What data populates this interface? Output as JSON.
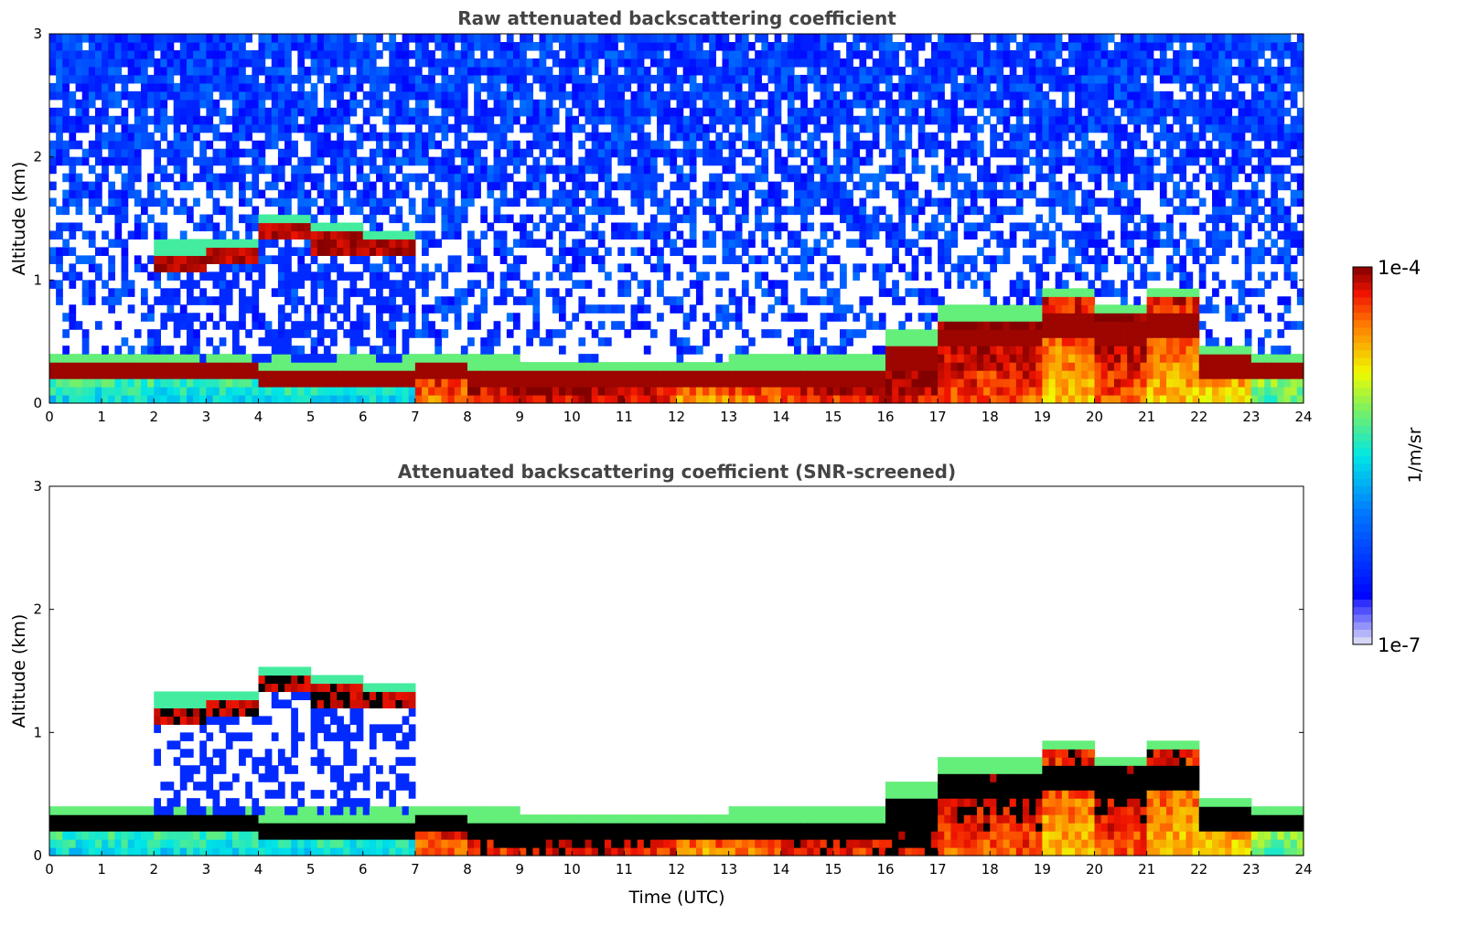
{
  "chart_data": [
    {
      "type": "heatmap",
      "title": "Raw attenuated backscattering coefficient",
      "xlabel": "",
      "ylabel": "Altitude (km)",
      "xlim": [
        0,
        24
      ],
      "ylim": [
        0,
        3
      ],
      "xticks": [
        "0",
        "1",
        "2",
        "3",
        "4",
        "5",
        "6",
        "7",
        "8",
        "9",
        "10",
        "11",
        "12",
        "13",
        "14",
        "15",
        "16",
        "17",
        "18",
        "19",
        "20",
        "21",
        "22",
        "23",
        "24"
      ],
      "yticks": [
        "0",
        "1",
        "2",
        "3"
      ],
      "screened": false
    },
    {
      "type": "heatmap",
      "title": "Attenuated backscattering coefficient (SNR-screened)",
      "xlabel": "Time (UTC)",
      "ylabel": "Altitude (km)",
      "xlim": [
        0,
        24
      ],
      "ylim": [
        0,
        3
      ],
      "xticks": [
        "0",
        "1",
        "2",
        "3",
        "4",
        "5",
        "6",
        "7",
        "8",
        "9",
        "10",
        "11",
        "12",
        "13",
        "14",
        "15",
        "16",
        "17",
        "18",
        "19",
        "20",
        "21",
        "22",
        "23",
        "24"
      ],
      "yticks": [
        "0",
        "1",
        "2",
        "3"
      ],
      "screened": true
    }
  ],
  "profile": {
    "hours": [
      0,
      1,
      2,
      3,
      4,
      5,
      6,
      7,
      8,
      9,
      10,
      11,
      12,
      13,
      14,
      15,
      16,
      17,
      18,
      19,
      20,
      21,
      22,
      23
    ],
    "aerosol_top_km": [
      0.33,
      0.33,
      0.35,
      0.35,
      0.3,
      0.3,
      0.3,
      0.35,
      0.3,
      0.25,
      0.25,
      0.25,
      0.25,
      0.3,
      0.3,
      0.3,
      0.5,
      0.7,
      0.7,
      0.85,
      0.75,
      0.85,
      0.4,
      0.35
    ],
    "cloud_km": [
      null,
      null,
      1.15,
      1.2,
      1.4,
      1.3,
      1.25,
      null,
      null,
      null,
      null,
      null,
      null,
      null,
      null,
      null,
      null,
      null,
      null,
      null,
      null,
      null,
      null,
      null
    ],
    "surface_log10_beta": [
      -5.6,
      -5.6,
      -5.6,
      -5.6,
      -5.6,
      -5.6,
      -5.6,
      -4.5,
      -4.3,
      -4.2,
      -4.2,
      -4.3,
      -4.6,
      -4.5,
      -4.3,
      -4.3,
      -4.2,
      -4.4,
      -4.4,
      -4.7,
      -4.4,
      -4.7,
      -4.8,
      -5.3
    ]
  },
  "colorbar": {
    "label": "1/m/sr",
    "max_label": "1e-4",
    "min_label": "1e-7",
    "log_range": [
      -7,
      -4
    ]
  }
}
